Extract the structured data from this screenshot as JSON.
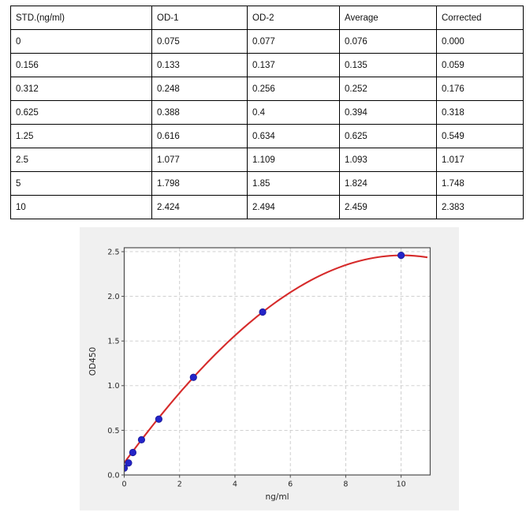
{
  "table": {
    "columns": [
      "STD.(ng/ml)",
      "OD-1",
      "OD-2",
      "Average",
      "Corrected"
    ],
    "rows": [
      [
        "0",
        "0.075",
        "0.077",
        "0.076",
        "0.000"
      ],
      [
        "0.156",
        "0.133",
        "0.137",
        "0.135",
        "0.059"
      ],
      [
        "0.312",
        "0.248",
        "0.256",
        "0.252",
        "0.176"
      ],
      [
        "0.625",
        "0.388",
        "0.4",
        "0.394",
        "0.318"
      ],
      [
        "1.25",
        "0.616",
        "0.634",
        "0.625",
        "0.549"
      ],
      [
        "2.5",
        "1.077",
        "1.109",
        "1.093",
        "1.017"
      ],
      [
        "5",
        "1.798",
        "1.85",
        "1.824",
        "1.748"
      ],
      [
        "10",
        "2.424",
        "2.494",
        "2.459",
        "2.383"
      ]
    ]
  },
  "chart_data": {
    "type": "scatter",
    "title": "",
    "xlabel": "ng/ml",
    "ylabel": "OD450",
    "xlim": [
      0,
      11.05
    ],
    "ylim": [
      0,
      2.544
    ],
    "x_ticks": [
      0,
      2,
      4,
      6,
      8,
      10
    ],
    "y_ticks": [
      0,
      0.5,
      1.0,
      1.5,
      2.0,
      2.5
    ],
    "x_tick_labels": [
      "0",
      "2",
      "4",
      "6",
      "8",
      "10"
    ],
    "y_tick_labels": [
      "0.0",
      "0.5",
      "1.0",
      "1.5",
      "2.0",
      "2.5"
    ],
    "grid": true,
    "grid_style": "dashed",
    "legend": "none",
    "points": {
      "x": [
        0,
        0.156,
        0.312,
        0.625,
        1.25,
        2.5,
        5,
        10
      ],
      "y": [
        0.076,
        0.135,
        0.252,
        0.394,
        0.625,
        1.093,
        1.824,
        2.459
      ]
    },
    "fit_curve": {
      "model": "cubic-polynomial",
      "coefficients": [
        0.1354,
        0.42347,
        -0.015191,
        -0.000392
      ],
      "x_range": [
        0,
        11.05
      ]
    },
    "colors": {
      "point": "#2424c8",
      "point_edge": "#1b1b96",
      "curve": "#d62b2b",
      "figure_bg": "#f0f0f0",
      "plot_bg": "#ffffff",
      "grid": "#c9c9c9",
      "frame": "#4d4d4d",
      "tick_text": "#262626"
    }
  }
}
